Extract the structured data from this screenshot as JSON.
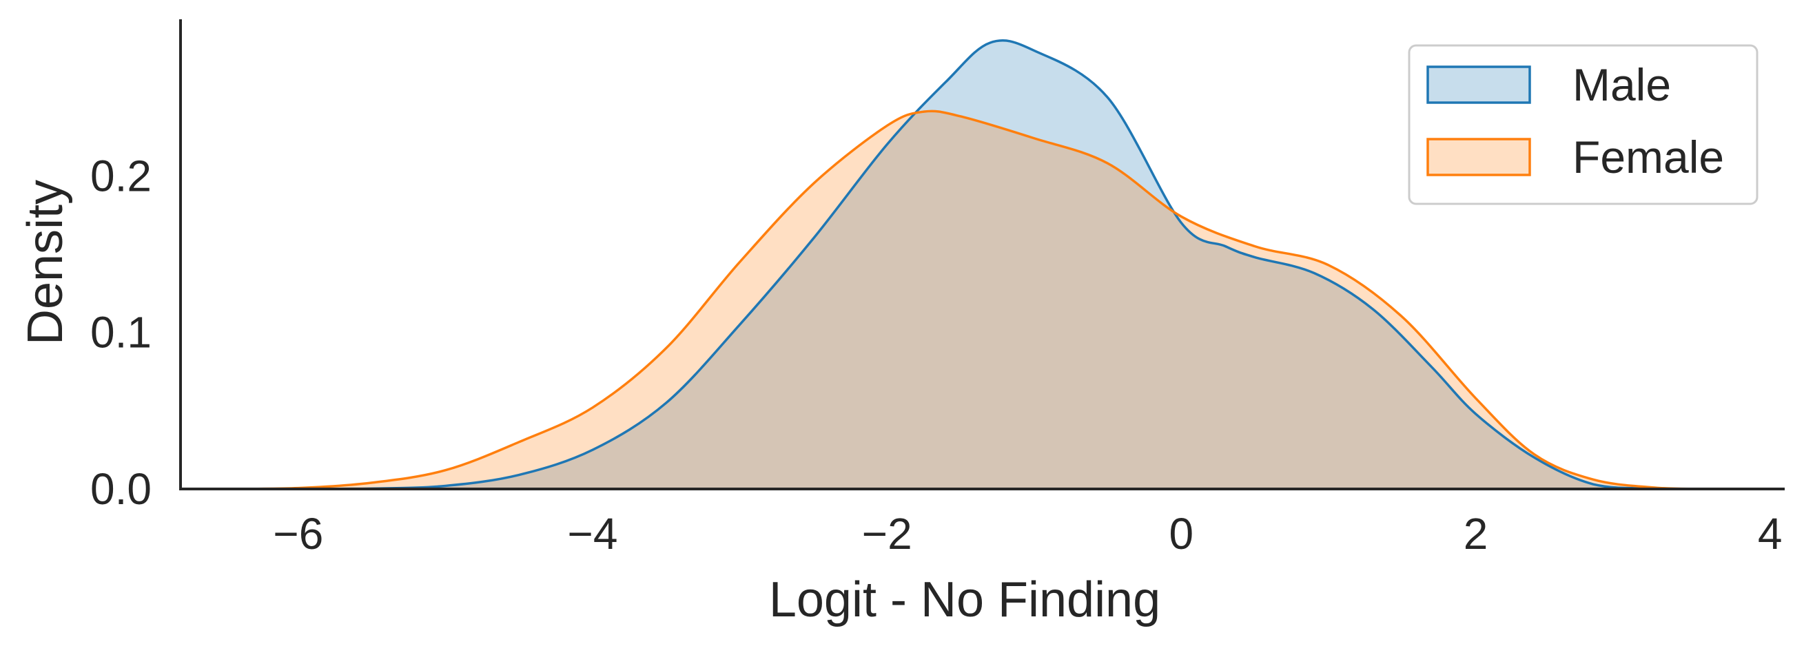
{
  "chart_data": {
    "type": "area",
    "title": "",
    "xlabel": "Logit - No Finding",
    "ylabel": "Density",
    "xlim": [
      -6.8,
      4.1
    ],
    "ylim": [
      0,
      0.3
    ],
    "x_ticks": [
      -6,
      -4,
      -2,
      0,
      2,
      4
    ],
    "x_tick_labels": [
      "−6",
      "−4",
      "−2",
      "0",
      "2",
      "4"
    ],
    "y_ticks": [
      0.0,
      0.1,
      0.2
    ],
    "y_tick_labels": [
      "0.0",
      "0.1",
      "0.2"
    ],
    "grid": false,
    "legend_position": "top-right",
    "series": [
      {
        "name": "Male",
        "line_color": "#1f77b4",
        "fill_color": "#1f77b4",
        "fill_opacity": 0.25,
        "points": [
          [
            -6.1,
            0.0
          ],
          [
            -5.5,
            0.0003
          ],
          [
            -5.0,
            0.002
          ],
          [
            -4.5,
            0.009
          ],
          [
            -4.0,
            0.025
          ],
          [
            -3.5,
            0.055
          ],
          [
            -3.0,
            0.105
          ],
          [
            -2.5,
            0.16
          ],
          [
            -2.0,
            0.22
          ],
          [
            -1.6,
            0.26
          ],
          [
            -1.3,
            0.285
          ],
          [
            -1.0,
            0.28
          ],
          [
            -0.5,
            0.25
          ],
          [
            0.0,
            0.17
          ],
          [
            0.3,
            0.155
          ],
          [
            0.5,
            0.148
          ],
          [
            0.9,
            0.138
          ],
          [
            1.3,
            0.115
          ],
          [
            1.7,
            0.078
          ],
          [
            2.0,
            0.048
          ],
          [
            2.4,
            0.02
          ],
          [
            2.8,
            0.003
          ],
          [
            3.2,
            0.0002
          ],
          [
            3.5,
            0.0
          ]
        ]
      },
      {
        "name": "Female",
        "line_color": "#ff7f0e",
        "fill_color": "#ff7f0e",
        "fill_opacity": 0.25,
        "points": [
          [
            -6.5,
            0.0
          ],
          [
            -6.0,
            0.0006
          ],
          [
            -5.5,
            0.004
          ],
          [
            -5.0,
            0.012
          ],
          [
            -4.5,
            0.03
          ],
          [
            -4.0,
            0.052
          ],
          [
            -3.5,
            0.09
          ],
          [
            -3.0,
            0.145
          ],
          [
            -2.5,
            0.195
          ],
          [
            -2.0,
            0.232
          ],
          [
            -1.75,
            0.241
          ],
          [
            -1.5,
            0.238
          ],
          [
            -1.0,
            0.224
          ],
          [
            -0.5,
            0.208
          ],
          [
            0.0,
            0.174
          ],
          [
            0.5,
            0.155
          ],
          [
            1.0,
            0.143
          ],
          [
            1.5,
            0.11
          ],
          [
            2.0,
            0.058
          ],
          [
            2.4,
            0.022
          ],
          [
            2.8,
            0.006
          ],
          [
            3.2,
            0.001
          ],
          [
            3.5,
            0.0
          ]
        ]
      }
    ]
  }
}
